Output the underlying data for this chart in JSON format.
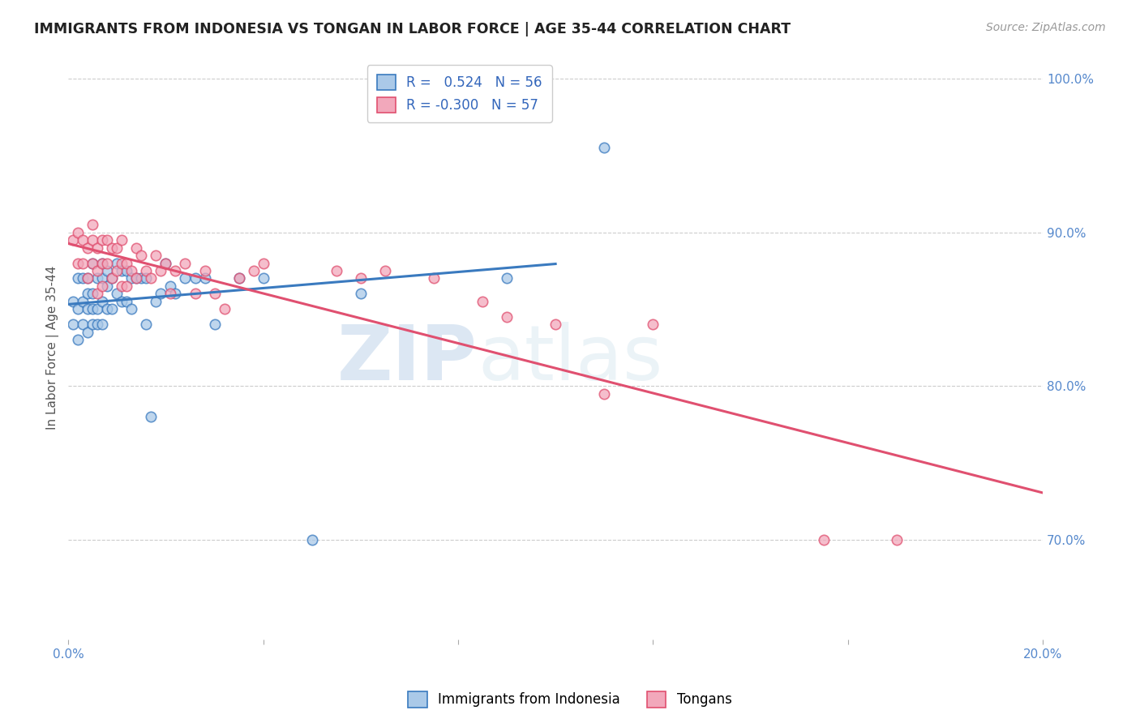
{
  "title": "IMMIGRANTS FROM INDONESIA VS TONGAN IN LABOR FORCE | AGE 35-44 CORRELATION CHART",
  "source": "Source: ZipAtlas.com",
  "ylabel": "In Labor Force | Age 35-44",
  "xlim": [
    0.0,
    0.2
  ],
  "ylim": [
    0.635,
    1.015
  ],
  "legend_r_indonesia": "0.524",
  "legend_n_indonesia": "56",
  "legend_r_tongan": "-0.300",
  "legend_n_tongan": "57",
  "color_indonesia": "#aac9e8",
  "color_tongan": "#f2a8bb",
  "color_line_indonesia": "#3a7abf",
  "color_line_tongan": "#e05070",
  "background_color": "#ffffff",
  "indonesia_x": [
    0.001,
    0.001,
    0.002,
    0.002,
    0.002,
    0.003,
    0.003,
    0.003,
    0.004,
    0.004,
    0.004,
    0.004,
    0.005,
    0.005,
    0.005,
    0.005,
    0.006,
    0.006,
    0.006,
    0.007,
    0.007,
    0.007,
    0.007,
    0.008,
    0.008,
    0.008,
    0.009,
    0.009,
    0.01,
    0.01,
    0.011,
    0.011,
    0.012,
    0.012,
    0.013,
    0.013,
    0.014,
    0.015,
    0.016,
    0.016,
    0.017,
    0.018,
    0.019,
    0.02,
    0.021,
    0.022,
    0.024,
    0.026,
    0.028,
    0.03,
    0.035,
    0.04,
    0.05,
    0.06,
    0.09,
    0.11
  ],
  "indonesia_y": [
    0.855,
    0.84,
    0.87,
    0.85,
    0.83,
    0.87,
    0.855,
    0.84,
    0.87,
    0.86,
    0.85,
    0.835,
    0.88,
    0.86,
    0.85,
    0.84,
    0.87,
    0.85,
    0.84,
    0.88,
    0.87,
    0.855,
    0.84,
    0.875,
    0.865,
    0.85,
    0.87,
    0.85,
    0.88,
    0.86,
    0.875,
    0.855,
    0.875,
    0.855,
    0.87,
    0.85,
    0.87,
    0.87,
    0.87,
    0.84,
    0.78,
    0.855,
    0.86,
    0.88,
    0.865,
    0.86,
    0.87,
    0.87,
    0.87,
    0.84,
    0.87,
    0.87,
    0.7,
    0.86,
    0.87,
    0.955
  ],
  "tongan_x": [
    0.001,
    0.002,
    0.002,
    0.003,
    0.003,
    0.004,
    0.004,
    0.005,
    0.005,
    0.005,
    0.006,
    0.006,
    0.006,
    0.007,
    0.007,
    0.007,
    0.008,
    0.008,
    0.009,
    0.009,
    0.01,
    0.01,
    0.011,
    0.011,
    0.011,
    0.012,
    0.012,
    0.013,
    0.014,
    0.014,
    0.015,
    0.016,
    0.017,
    0.018,
    0.019,
    0.02,
    0.021,
    0.022,
    0.024,
    0.026,
    0.028,
    0.03,
    0.032,
    0.035,
    0.038,
    0.04,
    0.055,
    0.06,
    0.065,
    0.075,
    0.085,
    0.09,
    0.1,
    0.11,
    0.12,
    0.155,
    0.17
  ],
  "tongan_y": [
    0.895,
    0.9,
    0.88,
    0.895,
    0.88,
    0.89,
    0.87,
    0.905,
    0.895,
    0.88,
    0.89,
    0.875,
    0.86,
    0.895,
    0.88,
    0.865,
    0.895,
    0.88,
    0.89,
    0.87,
    0.89,
    0.875,
    0.895,
    0.88,
    0.865,
    0.88,
    0.865,
    0.875,
    0.89,
    0.87,
    0.885,
    0.875,
    0.87,
    0.885,
    0.875,
    0.88,
    0.86,
    0.875,
    0.88,
    0.86,
    0.875,
    0.86,
    0.85,
    0.87,
    0.875,
    0.88,
    0.875,
    0.87,
    0.875,
    0.87,
    0.855,
    0.845,
    0.84,
    0.795,
    0.84,
    0.7,
    0.7
  ]
}
